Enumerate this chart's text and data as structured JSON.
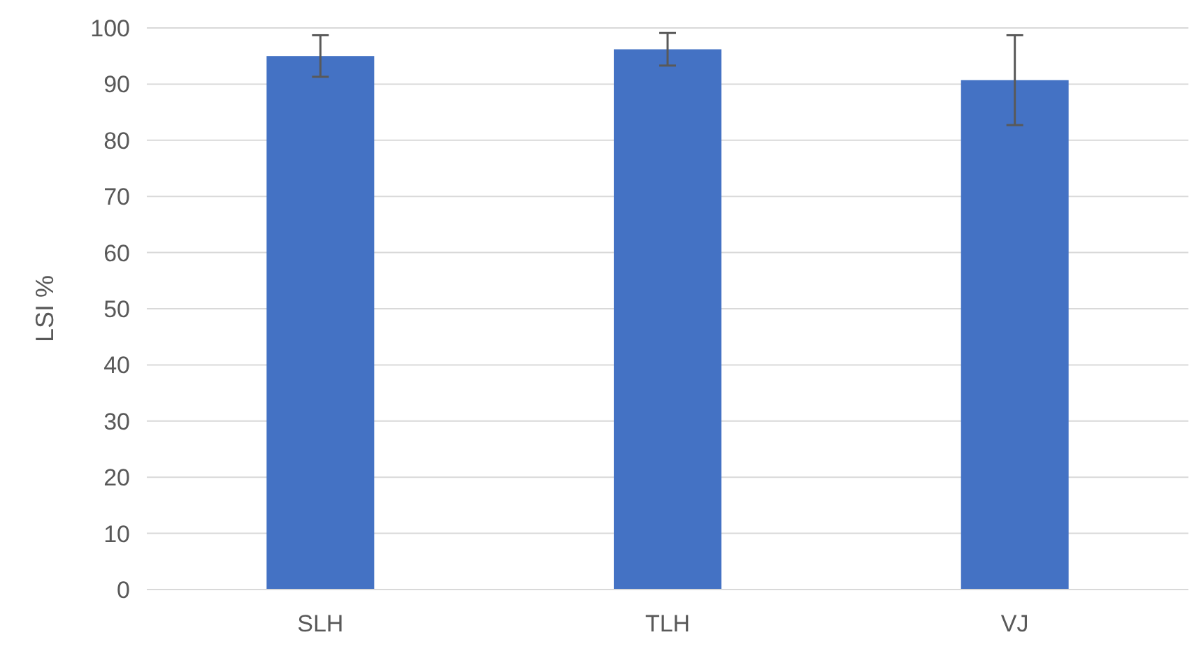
{
  "chart_data": {
    "type": "bar",
    "ylabel": "LSI %",
    "categories": [
      "SLH",
      "TLH",
      "VJ"
    ],
    "series": [
      {
        "color": "#4472c4",
        "values": [
          95.0,
          96.2,
          90.7
        ],
        "errors": [
          3.7,
          2.9,
          8.0
        ]
      }
    ],
    "ylim": [
      0,
      100
    ],
    "yticks": [
      0,
      10,
      20,
      30,
      40,
      50,
      60,
      70,
      80,
      90,
      100
    ],
    "grid": "y"
  }
}
